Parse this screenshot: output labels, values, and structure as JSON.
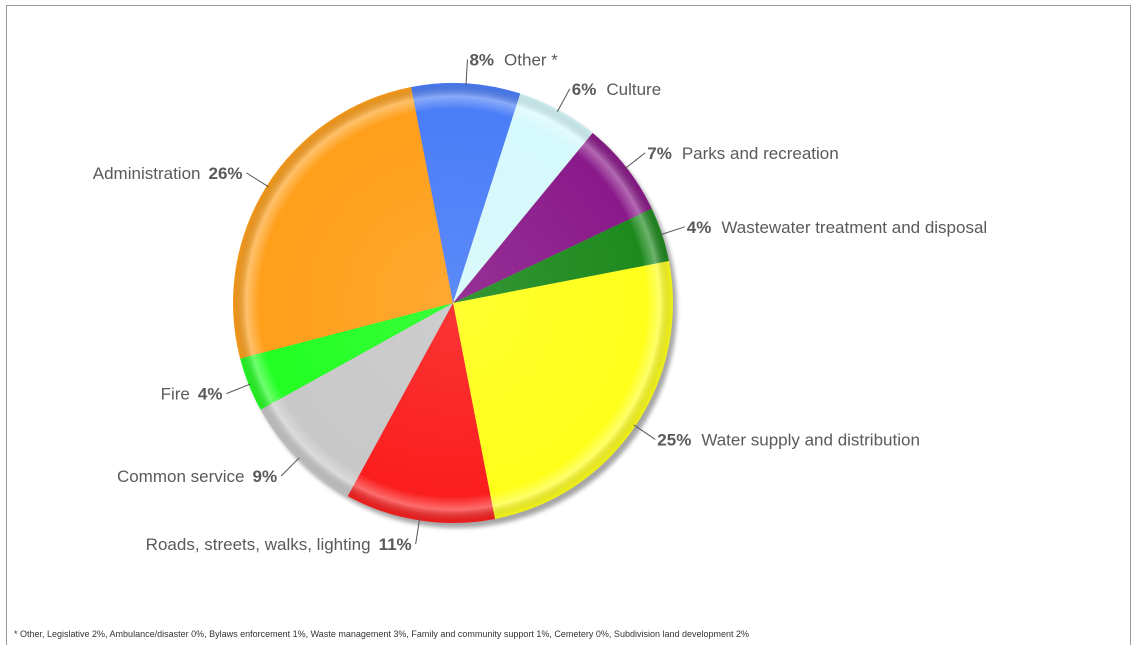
{
  "chart_data": {
    "type": "pie",
    "title": "",
    "start_category": "Other *",
    "direction": "clockwise",
    "slices": [
      {
        "label": "Other *",
        "value": 8,
        "display": "8%",
        "color": "#4a7df8",
        "label_side": "right"
      },
      {
        "label": "Culture",
        "value": 6,
        "display": "6%",
        "color": "#d6f9fb",
        "label_side": "right"
      },
      {
        "label": "Parks and recreation",
        "value": 7,
        "display": "7%",
        "color": "#8a1a8a",
        "label_side": "right"
      },
      {
        "label": "Wastewater treatment and disposal",
        "value": 4,
        "display": "4%",
        "color": "#1e8a1e",
        "label_side": "right"
      },
      {
        "label": "Water supply and distribution",
        "value": 25,
        "display": "25%",
        "color": "#ffff1a",
        "label_side": "right"
      },
      {
        "label": "Roads, streets, walks, lighting",
        "value": 11,
        "display": "11%",
        "color": "#fb1e1e",
        "label_side": "left"
      },
      {
        "label": "Common service",
        "value": 9,
        "display": "9%",
        "color": "#c8c8c8",
        "label_side": "left"
      },
      {
        "label": "Fire",
        "value": 4,
        "display": "4%",
        "color": "#22ff22",
        "label_side": "left"
      },
      {
        "label": "Administration",
        "value": 26,
        "display": "26%",
        "color": "#ff9f1a",
        "label_side": "left"
      }
    ],
    "footnote": "* Other, Legislative 2%, Ambulance/disaster 0%, Bylaws enforcement 1%, Waste management 3%, Family and community support 1%, Cemetery 0%, Subdivision land development 2%"
  }
}
